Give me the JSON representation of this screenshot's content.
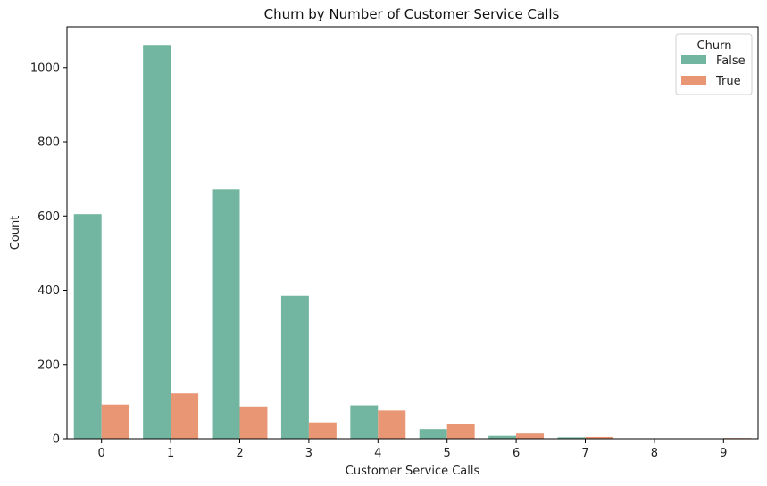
{
  "chart_data": {
    "type": "bar",
    "title": "Churn by Number of Customer Service Calls",
    "xlabel": "Customer Service Calls",
    "ylabel": "Count",
    "categories": [
      "0",
      "1",
      "2",
      "3",
      "4",
      "5",
      "6",
      "7",
      "8",
      "9"
    ],
    "ylim": [
      0,
      1110
    ],
    "yticks": [
      "0",
      "200",
      "400",
      "600",
      "800",
      "1000"
    ],
    "grid": false,
    "legend": {
      "title": "Churn",
      "placement": "top-right"
    },
    "series": [
      {
        "name": "False",
        "color": "#72b6a1",
        "values": [
          605,
          1059,
          672,
          385,
          90,
          26,
          8,
          4,
          1,
          0
        ]
      },
      {
        "name": "True",
        "color": "#e99675",
        "values": [
          92,
          122,
          87,
          44,
          76,
          40,
          14,
          5,
          1,
          2
        ]
      }
    ]
  }
}
